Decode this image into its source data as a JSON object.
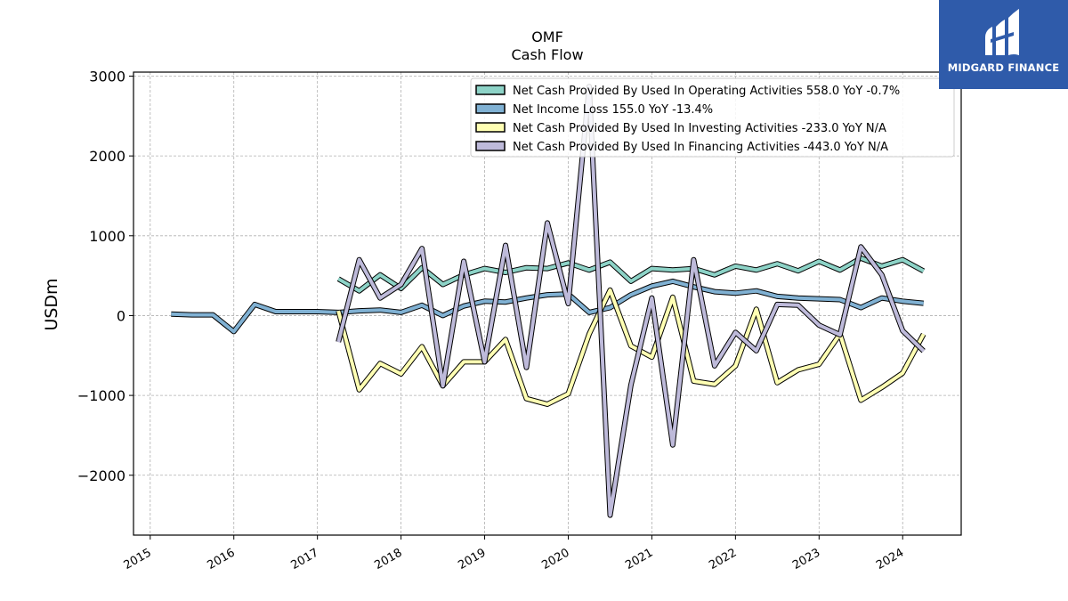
{
  "chart_data": {
    "type": "line",
    "title": "OMF",
    "subtitle": "Cash Flow",
    "xlabel": "",
    "ylabel": "USDm",
    "ylim": [
      -2750,
      3050
    ],
    "xlim": [
      2014.8,
      2024.7
    ],
    "yticks": [
      3000,
      2000,
      1000,
      0,
      -1000,
      -2000
    ],
    "ytick_labels": [
      "3000",
      "2000",
      "1000",
      "0",
      "−1000",
      "−2000"
    ],
    "xticks": [
      2015,
      2016,
      2017,
      2018,
      2019,
      2020,
      2021,
      2022,
      2023,
      2024
    ],
    "xtick_labels": [
      "2015",
      "2016",
      "2017",
      "2018",
      "2019",
      "2020",
      "2021",
      "2022",
      "2023",
      "2024"
    ],
    "grid": true,
    "legend_position": "top-right",
    "series": [
      {
        "name": "Net Cash Provided By Used In Operating Activities",
        "legend_label": "Net Cash Provided By Used In Operating Activities  558.0 YoY -0.7%",
        "color": "#8dd3c7",
        "x": [
          2017.25,
          2017.5,
          2017.75,
          2018.0,
          2018.25,
          2018.5,
          2018.75,
          2019.0,
          2019.25,
          2019.5,
          2019.75,
          2020.0,
          2020.25,
          2020.5,
          2020.75,
          2021.0,
          2021.25,
          2021.5,
          2021.75,
          2022.0,
          2022.25,
          2022.5,
          2022.75,
          2023.0,
          2023.25,
          2023.5,
          2023.75,
          2024.0,
          2024.25
        ],
        "values": [
          460,
          310,
          510,
          340,
          600,
          390,
          510,
          590,
          540,
          600,
          590,
          660,
          570,
          670,
          430,
          590,
          570,
          590,
          510,
          620,
          570,
          650,
          560,
          680,
          570,
          720,
          620,
          700,
          558
        ]
      },
      {
        "name": "Net Income Loss",
        "legend_label": "Net Income Loss  155.0 YoY -13.4%",
        "color": "#80b1d3",
        "x": [
          2015.25,
          2015.5,
          2015.75,
          2016.0,
          2016.25,
          2016.5,
          2016.75,
          2017.0,
          2017.25,
          2017.5,
          2017.75,
          2018.0,
          2018.25,
          2018.5,
          2018.75,
          2019.0,
          2019.25,
          2019.5,
          2019.75,
          2020.0,
          2020.25,
          2020.5,
          2020.75,
          2021.0,
          2021.25,
          2021.5,
          2021.75,
          2022.0,
          2022.25,
          2022.5,
          2022.75,
          2023.0,
          2023.25,
          2023.5,
          2023.75,
          2024.0,
          2024.25
        ],
        "values": [
          20,
          10,
          10,
          -200,
          140,
          50,
          50,
          50,
          40,
          60,
          70,
          40,
          130,
          0,
          120,
          180,
          170,
          220,
          260,
          270,
          40,
          100,
          260,
          370,
          430,
          360,
          300,
          280,
          310,
          240,
          220,
          210,
          200,
          100,
          220,
          180,
          155
        ]
      },
      {
        "name": "Net Cash Provided By Used In Investing Activities",
        "legend_label": "Net Cash Provided By Used In Investing Activities  -233.0 YoY N/A",
        "color": "#ffffb3",
        "x": [
          2017.25,
          2017.5,
          2017.75,
          2018.0,
          2018.25,
          2018.5,
          2018.75,
          2019.0,
          2019.25,
          2019.5,
          2019.75,
          2020.0,
          2020.25,
          2020.5,
          2020.75,
          2021.0,
          2021.25,
          2021.5,
          2021.75,
          2022.0,
          2022.25,
          2022.5,
          2022.75,
          2023.0,
          2023.25,
          2023.5,
          2023.75,
          2024.0,
          2024.25
        ],
        "values": [
          60,
          -930,
          -600,
          -730,
          -390,
          -880,
          -580,
          -580,
          -300,
          -1040,
          -1110,
          -980,
          -230,
          320,
          -380,
          -520,
          230,
          -820,
          -860,
          -630,
          80,
          -840,
          -680,
          -610,
          -230,
          -1060,
          -900,
          -720,
          -233
        ]
      },
      {
        "name": "Net Cash Provided By Used In Financing Activities",
        "legend_label": "Net Cash Provided By Used In Financing Activities  -443.0 YoY N/A",
        "color": "#bebada",
        "x": [
          2017.25,
          2017.5,
          2017.75,
          2018.0,
          2018.25,
          2018.5,
          2018.75,
          2019.0,
          2019.25,
          2019.5,
          2019.75,
          2020.0,
          2020.25,
          2020.5,
          2020.75,
          2021.0,
          2021.25,
          2021.5,
          2021.75,
          2022.0,
          2022.25,
          2022.5,
          2022.75,
          2023.0,
          2023.25,
          2023.5,
          2023.75,
          2024.0,
          2024.25
        ],
        "values": [
          -330,
          700,
          220,
          390,
          840,
          -880,
          680,
          -580,
          880,
          -650,
          1160,
          150,
          2870,
          -2500,
          -870,
          220,
          -1620,
          700,
          -630,
          -210,
          -440,
          140,
          130,
          -120,
          -240,
          860,
          510,
          -190,
          -443
        ]
      }
    ]
  },
  "logo": {
    "text": "MIDGARD FINANCE",
    "bg_color": "#2f5baa",
    "text_color": "#ffffff"
  }
}
